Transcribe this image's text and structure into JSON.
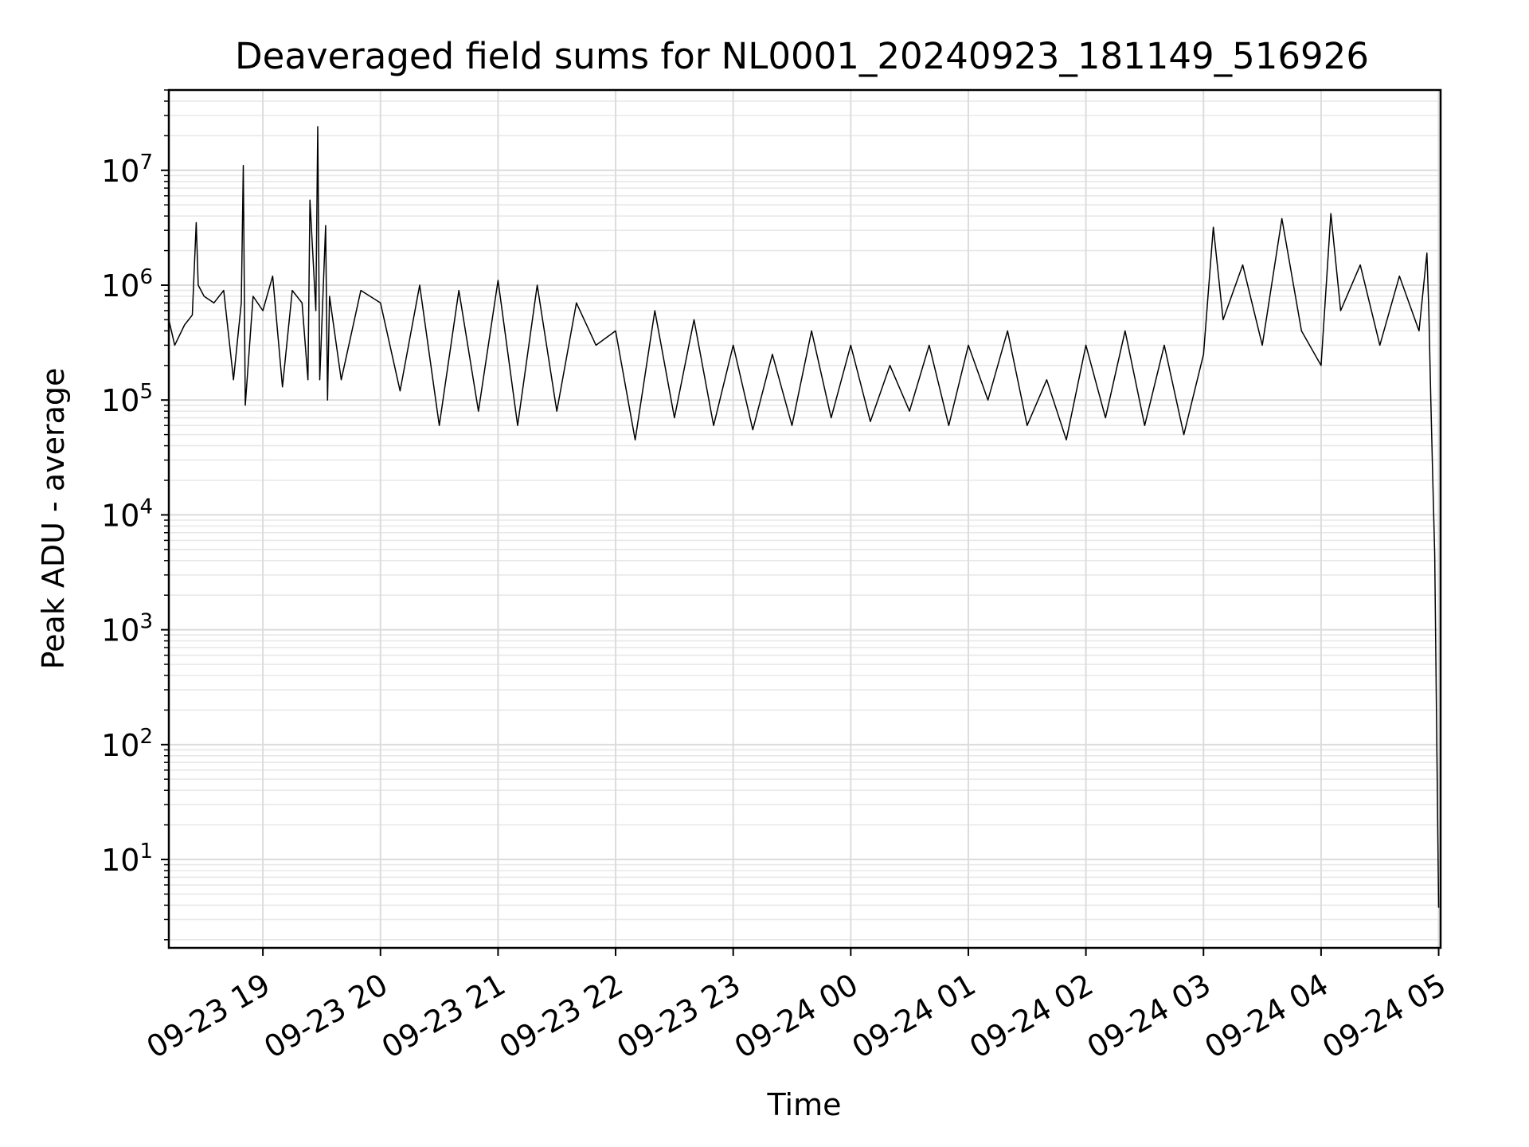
{
  "chart_data": {
    "type": "line",
    "title": "Deaveraged field sums for NL0001_20240923_181149_516926",
    "xlabel": "Time",
    "ylabel": "Peak ADU - average",
    "yscale": "log",
    "ylim": [
      1.7,
      50000000
    ],
    "xlim": [
      "2024-09-23 18:12",
      "2024-09-24 05:01"
    ],
    "grid": true,
    "line_color": "#000000",
    "x_ticks": [
      "2024-09-23 19:00",
      "2024-09-23 20:00",
      "2024-09-23 21:00",
      "2024-09-23 22:00",
      "2024-09-23 23:00",
      "2024-09-24 00:00",
      "2024-09-24 01:00",
      "2024-09-24 02:00",
      "2024-09-24 03:00",
      "2024-09-24 04:00",
      "2024-09-24 05:00"
    ],
    "x_tick_labels": [
      "09-23 19",
      "09-23 20",
      "09-23 21",
      "09-23 22",
      "09-23 23",
      "09-24 00",
      "09-24 01",
      "09-24 02",
      "09-24 03",
      "09-24 04",
      "09-24 05"
    ],
    "y_ticks": [
      10,
      100,
      1000,
      10000,
      100000,
      1000000,
      10000000
    ],
    "y_tick_labels": [
      {
        "base": "10",
        "exp": "1"
      },
      {
        "base": "10",
        "exp": "2"
      },
      {
        "base": "10",
        "exp": "3"
      },
      {
        "base": "10",
        "exp": "4"
      },
      {
        "base": "10",
        "exp": "5"
      },
      {
        "base": "10",
        "exp": "6"
      },
      {
        "base": "10",
        "exp": "7"
      }
    ],
    "series": [
      {
        "x": [
          "2024-09-23 18:12",
          "2024-09-23 18:15",
          "2024-09-23 18:20",
          "2024-09-23 18:24",
          "2024-09-23 18:26",
          "2024-09-23 18:27",
          "2024-09-23 18:30",
          "2024-09-23 18:35",
          "2024-09-23 18:40",
          "2024-09-23 18:45",
          "2024-09-23 18:49",
          "2024-09-23 18:50",
          "2024-09-23 18:51",
          "2024-09-23 18:55",
          "2024-09-23 19:00",
          "2024-09-23 19:05",
          "2024-09-23 19:10",
          "2024-09-23 19:15",
          "2024-09-23 19:20",
          "2024-09-23 19:23",
          "2024-09-23 19:24",
          "2024-09-23 19:27",
          "2024-09-23 19:28",
          "2024-09-23 19:29",
          "2024-09-23 19:32",
          "2024-09-23 19:33",
          "2024-09-23 19:34",
          "2024-09-23 19:40",
          "2024-09-23 19:50",
          "2024-09-23 20:00",
          "2024-09-23 20:10",
          "2024-09-23 20:20",
          "2024-09-23 20:30",
          "2024-09-23 20:40",
          "2024-09-23 20:50",
          "2024-09-23 21:00",
          "2024-09-23 21:10",
          "2024-09-23 21:20",
          "2024-09-23 21:30",
          "2024-09-23 21:40",
          "2024-09-23 21:50",
          "2024-09-23 22:00",
          "2024-09-23 22:10",
          "2024-09-23 22:20",
          "2024-09-23 22:30",
          "2024-09-23 22:40",
          "2024-09-23 22:50",
          "2024-09-23 23:00",
          "2024-09-23 23:10",
          "2024-09-23 23:20",
          "2024-09-23 23:30",
          "2024-09-23 23:40",
          "2024-09-23 23:50",
          "2024-09-24 00:00",
          "2024-09-24 00:10",
          "2024-09-24 00:20",
          "2024-09-24 00:30",
          "2024-09-24 00:40",
          "2024-09-24 00:50",
          "2024-09-24 01:00",
          "2024-09-24 01:10",
          "2024-09-24 01:20",
          "2024-09-24 01:30",
          "2024-09-24 01:40",
          "2024-09-24 01:50",
          "2024-09-24 02:00",
          "2024-09-24 02:10",
          "2024-09-24 02:20",
          "2024-09-24 02:30",
          "2024-09-24 02:40",
          "2024-09-24 02:50",
          "2024-09-24 03:00",
          "2024-09-24 03:05",
          "2024-09-24 03:10",
          "2024-09-24 03:20",
          "2024-09-24 03:30",
          "2024-09-24 03:40",
          "2024-09-24 03:50",
          "2024-09-24 04:00",
          "2024-09-24 04:05",
          "2024-09-24 04:10",
          "2024-09-24 04:20",
          "2024-09-24 04:30",
          "2024-09-24 04:40",
          "2024-09-24 04:50",
          "2024-09-24 04:54",
          "2024-09-24 04:55",
          "2024-09-24 04:56",
          "2024-09-24 04:57",
          "2024-09-24 04:58",
          "2024-09-24 05:00"
        ],
        "y": [
          500000,
          300000,
          450000,
          550000,
          3500000,
          1000000,
          800000,
          700000,
          900000,
          150000,
          700000,
          11000000,
          90000,
          800000,
          600000,
          1200000,
          130000,
          900000,
          700000,
          150000,
          5500000,
          600000,
          24000000,
          150000,
          3300000,
          100000,
          800000,
          150000,
          900000,
          700000,
          120000,
          1000000,
          60000,
          900000,
          80000,
          1100000,
          60000,
          1000000,
          80000,
          700000,
          300000,
          400000,
          45000,
          600000,
          70000,
          500000,
          60000,
          300000,
          55000,
          250000,
          60000,
          400000,
          70000,
          300000,
          65000,
          200000,
          80000,
          300000,
          60000,
          300000,
          100000,
          400000,
          60000,
          150000,
          45000,
          300000,
          70000,
          400000,
          60000,
          300000,
          50000,
          250000,
          3200000,
          500000,
          1500000,
          300000,
          3800000,
          400000,
          200000,
          4200000,
          600000,
          1500000,
          300000,
          1200000,
          400000,
          1900000,
          600000,
          100000,
          20000,
          4500,
          3.8
        ]
      }
    ]
  }
}
